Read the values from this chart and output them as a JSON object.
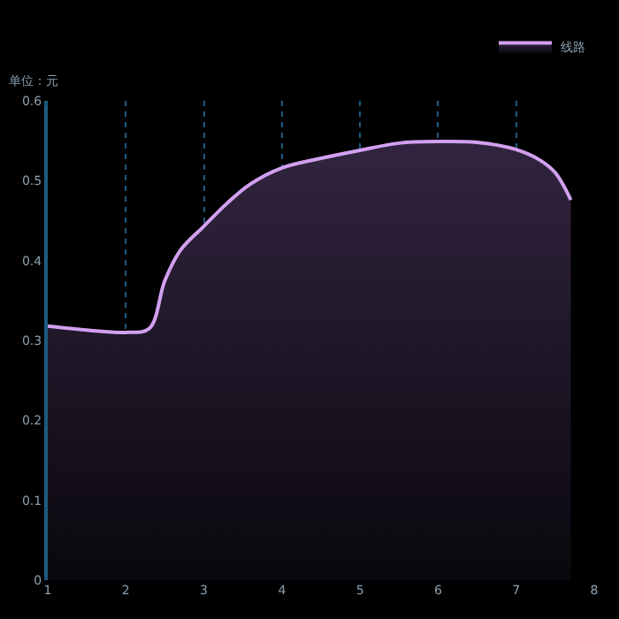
{
  "chart_data": {
    "type": "area",
    "ylabel": "单位：元",
    "x": [
      1,
      1.5,
      2,
      2.3,
      2.5,
      2.7,
      3,
      3.3,
      3.6,
      4,
      4.5,
      5,
      5.5,
      6,
      6.5,
      7,
      7.3,
      7.5,
      7.7
    ],
    "series": [
      {
        "name": "线路",
        "color": "#d2a0f0",
        "values": [
          0.318,
          0.313,
          0.31,
          0.315,
          0.375,
          0.413,
          0.443,
          0.472,
          0.496,
          0.516,
          0.528,
          0.538,
          0.547,
          0.549,
          0.548,
          0.539,
          0.526,
          0.51,
          0.476
        ]
      }
    ],
    "xlim": [
      1,
      8
    ],
    "xticks": [
      1,
      2,
      3,
      4,
      5,
      6,
      7,
      8
    ],
    "ylim": [
      0,
      0.6
    ],
    "yticks": [
      0,
      0.1,
      0.2,
      0.3,
      0.4,
      0.5,
      0.6
    ],
    "grid": "x",
    "legend": "top right",
    "marker": "none"
  }
}
